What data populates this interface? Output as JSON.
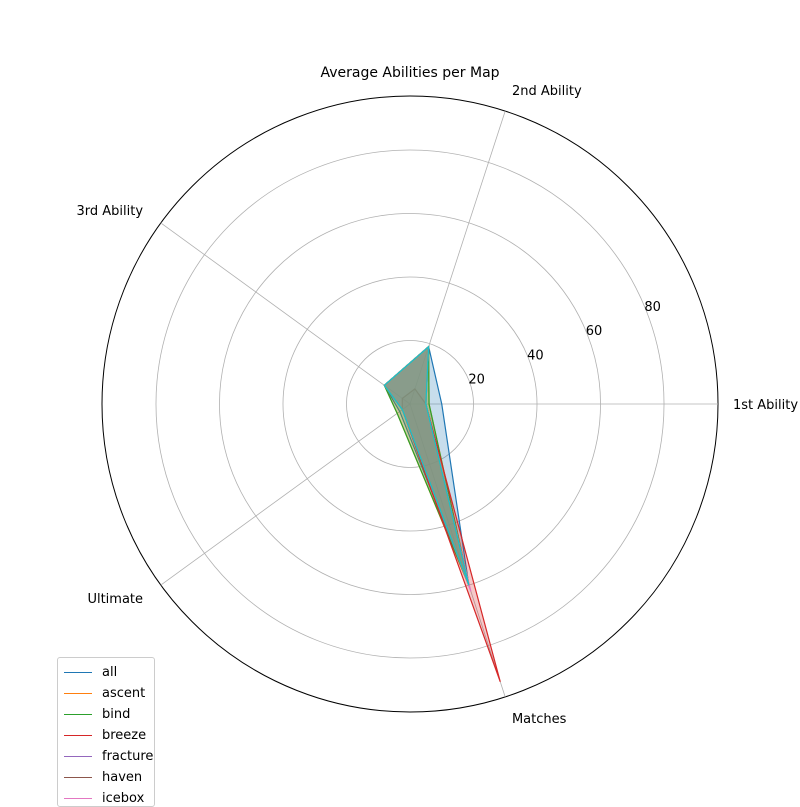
{
  "chart_data": {
    "type": "radar",
    "title": "Average Abilities per Map",
    "axes": [
      "1st Ability",
      "2nd Ability",
      "3rd Ability",
      "Ultimate",
      "Matches"
    ],
    "radial_ticks": [
      "20",
      "40",
      "60",
      "80"
    ],
    "radial_tick_values": [
      20,
      40,
      60,
      80
    ],
    "rmax": 97,
    "grid": true,
    "fill_opacity": 0.25,
    "legend_position": "lower-left",
    "series": [
      {
        "name": "all",
        "color": "#1f77b4",
        "values": [
          10,
          19,
          10,
          4,
          60
        ]
      },
      {
        "name": "ascent",
        "color": "#ff7f0e",
        "values": [
          6,
          19,
          10,
          5,
          61
        ]
      },
      {
        "name": "bind",
        "color": "#2ca02c",
        "values": [
          6,
          19,
          10,
          5,
          60
        ]
      },
      {
        "name": "breeze",
        "color": "#d62728",
        "values": [
          5,
          19,
          10,
          3,
          92
        ]
      },
      {
        "name": "fracture",
        "color": "#9467bd",
        "values": [
          5,
          19,
          10,
          3,
          60
        ]
      },
      {
        "name": "haven",
        "color": "#8c564b",
        "values": [
          5,
          5,
          3,
          3,
          60
        ]
      },
      {
        "name": "icebox",
        "color": "#e377c2",
        "values": [
          5,
          19,
          10,
          3,
          62
        ]
      },
      {
        "name": "",
        "color": "#7f7f7f",
        "values": [
          5,
          19,
          10,
          3,
          60
        ]
      },
      {
        "name": "",
        "color": "#bcbd22",
        "values": [
          5,
          19,
          10,
          3,
          60
        ]
      },
      {
        "name": "",
        "color": "#17becf",
        "values": [
          5,
          19,
          10,
          3,
          60
        ]
      }
    ]
  }
}
